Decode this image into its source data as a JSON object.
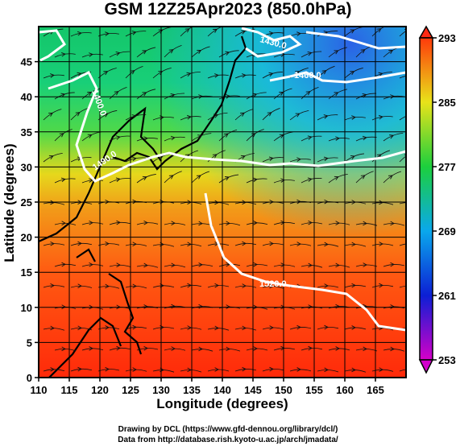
{
  "title": "GSM 12Z25Apr2023 (850.0hPa)",
  "map": {
    "xlabel": "Longitude (degrees)",
    "ylabel": "Latitude (degrees)",
    "xlim": [
      110,
      170
    ],
    "ylim": [
      0,
      50
    ],
    "xticks": [
      "110",
      "115",
      "120",
      "125",
      "130",
      "135",
      "140",
      "145",
      "150",
      "155",
      "160",
      "165"
    ],
    "yticks": [
      "0",
      "5",
      "10",
      "15",
      "20",
      "25",
      "30",
      "35",
      "40",
      "45"
    ],
    "contour_labels": [
      "1400.0",
      "1430.0",
      "1460.0",
      "1490.0",
      "1520.0"
    ],
    "gridlines": true
  },
  "colorbar": {
    "ticks": [
      "253",
      "261",
      "269",
      "277",
      "285",
      "293"
    ],
    "range": [
      253,
      293
    ],
    "colors": [
      "#d500c8",
      "#0c1fd4",
      "#0aa8ec",
      "#1ccf3d",
      "#e8e31a",
      "#ff3a0b"
    ]
  },
  "credits": {
    "line1": "Drawing by DCL (https://www.gfd-dennou.org/library/dcl/)",
    "line2": "Data from http://database.rish.kyoto-u.ac.jp/arch/jmadata/"
  }
}
